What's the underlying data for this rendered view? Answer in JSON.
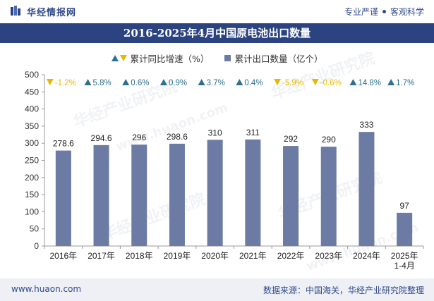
{
  "header": {
    "brand": "华经情报网",
    "slogan_left": "专业严谨",
    "slogan_right": "客观科学"
  },
  "title": "2016-2025年4月中国原电池出口数量",
  "legend": {
    "growth_label": "累计同比增速（%）",
    "volume_label": "累计出口数量（亿个）"
  },
  "footer": {
    "site": "www.huaon.com",
    "source": "数据来源：中国海关，华经产业研究院整理"
  },
  "watermark": {
    "text": "华经产业研究院",
    "url": "www.huaon.com"
  },
  "colors": {
    "bar": "#6b7ba4",
    "up": "#2f6f8f",
    "down": "#e8b800",
    "accent": "#2b4380"
  },
  "chart_data": {
    "type": "bar",
    "title": "2016-2025年4月中国原电池出口数量",
    "categories": [
      "2016年",
      "2017年",
      "2018年",
      "2019年",
      "2020年",
      "2021年",
      "2022年",
      "2023年",
      "2024年",
      "2025年 1-4月"
    ],
    "category_lines": [
      [
        "2016年"
      ],
      [
        "2017年"
      ],
      [
        "2018年"
      ],
      [
        "2019年"
      ],
      [
        "2020年"
      ],
      [
        "2021年"
      ],
      [
        "2022年"
      ],
      [
        "2023年"
      ],
      [
        "2024年"
      ],
      [
        "2025年",
        "1-4月"
      ]
    ],
    "series": [
      {
        "name": "累计出口数量（亿个）",
        "values": [
          278.6,
          294.6,
          296,
          298.6,
          310,
          311,
          292,
          290,
          333,
          97
        ]
      },
      {
        "name": "累计同比增速（%）",
        "values": [
          -1.2,
          5.8,
          0.6,
          0.9,
          3.7,
          0.4,
          -5.9,
          -0.6,
          14.8,
          1.7
        ]
      }
    ],
    "value_labels": [
      "278.6",
      "294.6",
      "296",
      "298.6",
      "310",
      "311",
      "292",
      "290",
      "333",
      "97"
    ],
    "growth_labels": [
      "-1.2%",
      "5.8%",
      "0.6%",
      "0.9%",
      "3.7%",
      "0.4%",
      "-5.9%",
      "-0.6%",
      "14.8%",
      "1.7%"
    ],
    "ylim": [
      0,
      500
    ],
    "yticks": [
      0,
      50,
      100,
      150,
      200,
      250,
      300,
      350,
      400,
      450,
      500
    ],
    "xlabel": "",
    "ylabel": "",
    "legend_position": "top-center"
  }
}
